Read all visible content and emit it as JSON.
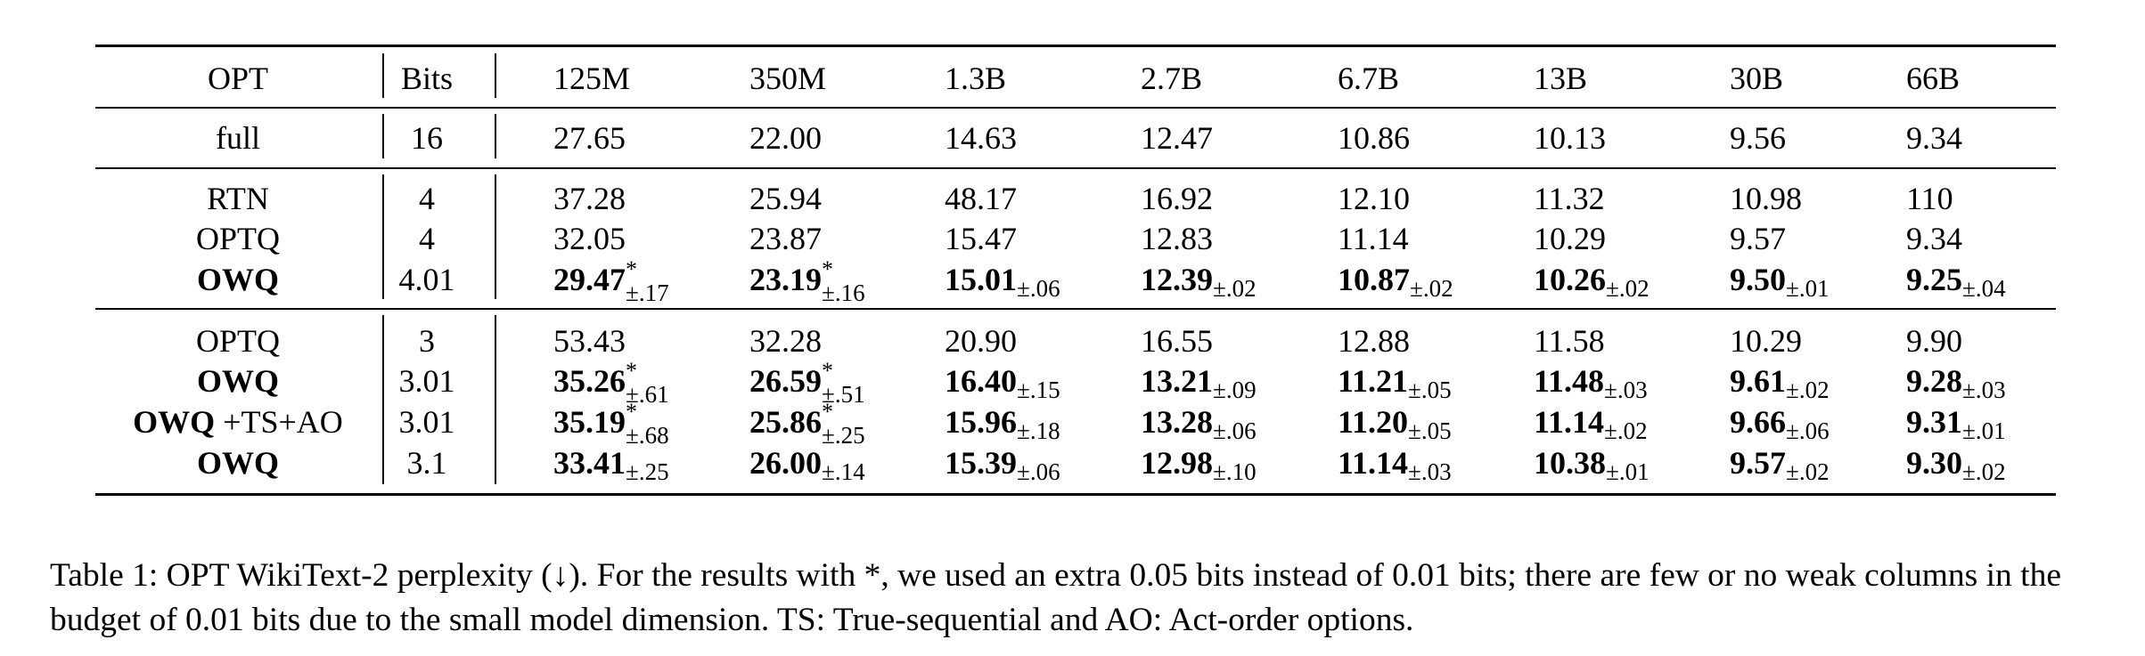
{
  "header": {
    "model_label": "OPT",
    "bits_label": "Bits",
    "sizes": [
      "125M",
      "350M",
      "1.3B",
      "2.7B",
      "6.7B",
      "13B",
      "30B",
      "66B"
    ]
  },
  "full_row": {
    "method": "full",
    "bits": "16",
    "values": [
      "27.65",
      "22.00",
      "14.63",
      "12.47",
      "10.86",
      "10.13",
      "9.56",
      "9.34"
    ]
  },
  "group1": [
    {
      "method": "RTN",
      "bits": "4",
      "bold": false,
      "cells": [
        {
          "v": "37.28"
        },
        {
          "v": "25.94"
        },
        {
          "v": "48.17"
        },
        {
          "v": "16.92"
        },
        {
          "v": "12.10"
        },
        {
          "v": "11.32"
        },
        {
          "v": "10.98"
        },
        {
          "v": "110"
        }
      ]
    },
    {
      "method": "OPTQ",
      "bits": "4",
      "bold": false,
      "cells": [
        {
          "v": "32.05"
        },
        {
          "v": "23.87"
        },
        {
          "v": "15.47"
        },
        {
          "v": "12.83"
        },
        {
          "v": "11.14"
        },
        {
          "v": "10.29"
        },
        {
          "v": "9.57"
        },
        {
          "v": "9.34"
        }
      ]
    },
    {
      "method": "OWQ",
      "bits": "4.01",
      "bold": true,
      "cells": [
        {
          "v": "29.47",
          "star": "*",
          "pm": "±.17"
        },
        {
          "v": "23.19",
          "star": "*",
          "pm": "±.16"
        },
        {
          "v": "15.01",
          "pm": "±.06"
        },
        {
          "v": "12.39",
          "pm": "±.02"
        },
        {
          "v": "10.87",
          "pm": "±.02"
        },
        {
          "v": "10.26",
          "pm": "±.02"
        },
        {
          "v": "9.50",
          "pm": "±.01"
        },
        {
          "v": "9.25",
          "pm": "±.04"
        }
      ]
    }
  ],
  "group2": [
    {
      "method": "OPTQ",
      "bits": "3",
      "bold": false,
      "cells": [
        {
          "v": "53.43"
        },
        {
          "v": "32.28"
        },
        {
          "v": "20.90"
        },
        {
          "v": "16.55"
        },
        {
          "v": "12.88"
        },
        {
          "v": "11.58"
        },
        {
          "v": "10.29"
        },
        {
          "v": "9.90"
        }
      ]
    },
    {
      "method": "OWQ",
      "bits": "3.01",
      "bold": true,
      "cells": [
        {
          "v": "35.26",
          "star": "*",
          "pm": "±.61"
        },
        {
          "v": "26.59",
          "star": "*",
          "pm": "±.51"
        },
        {
          "v": "16.40",
          "pm": "±.15"
        },
        {
          "v": "13.21",
          "pm": "±.09"
        },
        {
          "v": "11.21",
          "pm": "±.05"
        },
        {
          "v": "11.48",
          "pm": "±.03"
        },
        {
          "v": "9.61",
          "pm": "±.02"
        },
        {
          "v": "9.28",
          "pm": "±.03"
        }
      ]
    },
    {
      "method": "OWQ",
      "method_suffix": " +TS+AO",
      "bits": "3.01",
      "bold": true,
      "cells": [
        {
          "v": "35.19",
          "star": "*",
          "pm": "±.68"
        },
        {
          "v": "25.86",
          "star": "*",
          "pm": "±.25"
        },
        {
          "v": "15.96",
          "pm": "±.18"
        },
        {
          "v": "13.28",
          "pm": "±.06"
        },
        {
          "v": "11.20",
          "pm": "±.05"
        },
        {
          "v": "11.14",
          "pm": "±.02"
        },
        {
          "v": "9.66",
          "pm": "±.06"
        },
        {
          "v": "9.31",
          "pm": "±.01"
        }
      ]
    },
    {
      "method": "OWQ",
      "bits": "3.1",
      "bold": true,
      "cells": [
        {
          "v": "33.41",
          "pm": "±.25"
        },
        {
          "v": "26.00",
          "pm": "±.14"
        },
        {
          "v": "15.39",
          "pm": "±.06"
        },
        {
          "v": "12.98",
          "pm": "±.10"
        },
        {
          "v": "11.14",
          "pm": "±.03"
        },
        {
          "v": "10.38",
          "pm": "±.01"
        },
        {
          "v": "9.57",
          "pm": "±.02"
        },
        {
          "v": "9.30",
          "pm": "±.02"
        }
      ]
    }
  ],
  "caption": "Table 1: OPT WikiText-2 perplexity (↓). For the results with *, we used an extra 0.05 bits instead of 0.01 bits; there are few or no weak columns in the budget of 0.01 bits due to the small model dimension. TS: True-sequential and AO: Act-order options."
}
